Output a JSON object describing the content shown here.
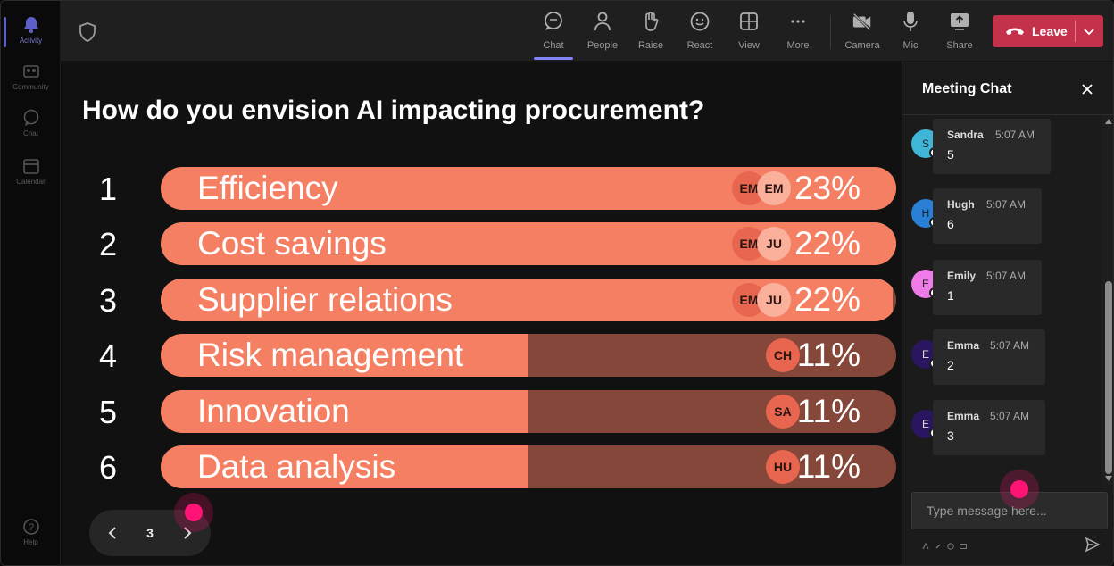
{
  "rail": {
    "items": [
      {
        "label": "Activity",
        "icon": "bell-icon"
      },
      {
        "label": "Community",
        "icon": "community-icon"
      },
      {
        "label": "Chat",
        "icon": "chat-icon"
      },
      {
        "label": "Calendar",
        "icon": "calendar-icon"
      },
      {
        "label": "Help",
        "icon": "help-icon"
      }
    ]
  },
  "toolbar": {
    "chat": "Chat",
    "people": "People",
    "raise": "Raise",
    "react": "React",
    "view": "View",
    "more": "More",
    "camera": "Camera",
    "mic": "Mic",
    "share": "Share",
    "leave": "Leave"
  },
  "poll": {
    "question": "How do you envision AI impacting procurement?",
    "options": [
      {
        "num": "1",
        "label": "Efficiency",
        "pct": "23%",
        "fill": 1.0,
        "avatars": [
          "EM",
          "EM"
        ]
      },
      {
        "num": "2",
        "label": "Cost savings",
        "pct": "22%",
        "fill": 1.0,
        "avatars": [
          "EM",
          "JU"
        ]
      },
      {
        "num": "3",
        "label": "Supplier relations",
        "pct": "22%",
        "fill": 0.995,
        "avatars": [
          "EM",
          "JU"
        ]
      },
      {
        "num": "4",
        "label": "Risk management",
        "pct": "11%",
        "fill": 0.5,
        "avatars": [
          "CH"
        ]
      },
      {
        "num": "5",
        "label": "Innovation",
        "pct": "11%",
        "fill": 0.5,
        "avatars": [
          "SA"
        ]
      },
      {
        "num": "6",
        "label": "Data analysis",
        "pct": "11%",
        "fill": 0.5,
        "avatars": [
          "HU"
        ]
      }
    ],
    "page": "3"
  },
  "chat": {
    "title": "Meeting Chat",
    "messages": [
      {
        "initial": "S",
        "name": "Sandra",
        "time": "5:07 AM",
        "text": "5",
        "color": "#3fb5d8"
      },
      {
        "initial": "H",
        "name": "Hugh",
        "time": "5:07 AM",
        "text": "6",
        "color": "#2a7fd6"
      },
      {
        "initial": "E",
        "name": "Emily",
        "time": "5:07 AM",
        "text": "1",
        "color": "#f07ae8"
      },
      {
        "initial": "E",
        "name": "Emma",
        "time": "5:07 AM",
        "text": "2",
        "color": "#2a1660"
      },
      {
        "initial": "E",
        "name": "Emma",
        "time": "5:07 AM",
        "text": "3",
        "color": "#2a1660"
      }
    ],
    "placeholder": "Type message here..."
  },
  "colors": {
    "accent": "#5b5fc7",
    "leave": "#c4314b",
    "bar_fill": "#f47f62",
    "bar_track": "#854739"
  }
}
